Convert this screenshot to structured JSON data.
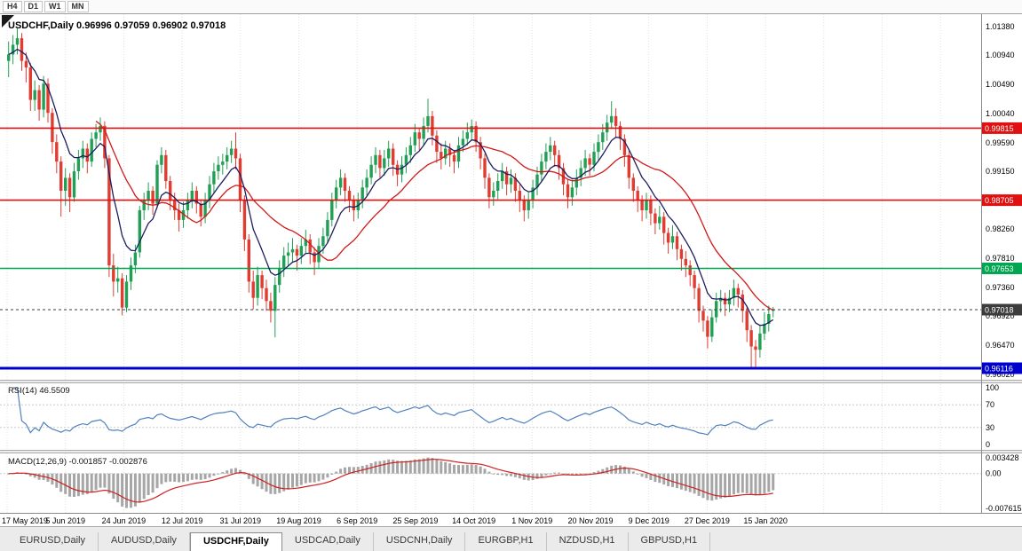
{
  "toolbar": {
    "timeframes": [
      "H4",
      "D1",
      "W1",
      "MN"
    ]
  },
  "chart": {
    "title_line": "USDCHF,Daily 0.96996 0.97059 0.96902 0.97018",
    "rsi_title": "RSI(14) 46.5509",
    "macd_title": "MACD(12,26,9) -0.001857 -0.002876"
  },
  "tabs": {
    "items": [
      "EURUSD,Daily",
      "AUDUSD,Daily",
      "USDCHF,Daily",
      "USDCAD,Daily",
      "USDCNH,Daily",
      "EURGBP,H1",
      "NZDUSD,H1",
      "GBPUSD,H1"
    ],
    "active": "USDCHF,Daily"
  },
  "colors": {
    "up": "#21a055",
    "down": "#e03c32",
    "ma_fast": "#1c1c60",
    "ma_slow": "#d11a1a",
    "rsi": "#4f81bd",
    "macd_hist": "#a6a6a6",
    "macd_signal": "#cf2020",
    "hline_red": "#e01010",
    "hline_green": "#00a651",
    "hline_blue": "#0000cd",
    "bid_box": "#3c3c3c"
  },
  "chart_data": {
    "type": "candlestick",
    "symbol": "USDCHF",
    "timeframe": "Daily",
    "ohlc_current": {
      "open": 0.96996,
      "high": 0.97059,
      "low": 0.96902,
      "close": 0.97018
    },
    "x_tick_labels": [
      "17 May 2019",
      "5 Jun 2019",
      "24 Jun 2019",
      "12 Jul 2019",
      "31 Jul 2019",
      "19 Aug 2019",
      "6 Sep 2019",
      "25 Sep 2019",
      "14 Oct 2019",
      "1 Nov 2019",
      "20 Nov 2019",
      "9 Dec 2019",
      "27 Dec 2019",
      "15 Jan 2020"
    ],
    "y_tick_labels": [
      "1.01380",
      "1.00940",
      "1.00490",
      "1.00040",
      "0.99590",
      "0.99150",
      "0.98260",
      "0.97810",
      "0.97360",
      "0.96920",
      "0.96470",
      "0.96020"
    ],
    "y_axis": {
      "max": 1.01571,
      "min": 0.95924
    },
    "price_scale_divisor": 10000,
    "horizontal_lines": [
      {
        "price": 0.99815,
        "label": "0.99815",
        "color": "#e01010",
        "line_width": 1.6,
        "dashed": false
      },
      {
        "price": 0.98705,
        "label": "0.98705",
        "color": "#e01010",
        "line_width": 1.6,
        "dashed": false
      },
      {
        "price": 0.97653,
        "label": "0.97653",
        "color": "#00a651",
        "line_width": 1.6,
        "dashed": false
      },
      {
        "price": 0.97018,
        "label": "0.97018",
        "color": "#3c3c3c",
        "line_width": 1,
        "dashed": true
      },
      {
        "price": 0.96116,
        "label": "0.96116",
        "color": "#0000cd",
        "line_width": 3,
        "dashed": false
      }
    ],
    "moving_averages": [
      {
        "method": "ema",
        "period": 8,
        "color": "#1c1c60"
      },
      {
        "method": "sma",
        "period": 21,
        "color": "#d11a1a"
      }
    ],
    "rsi": {
      "period": 14,
      "current": 46.5509,
      "scale_labels": [
        "100",
        "70",
        "30",
        "0"
      ],
      "levels": [
        70,
        30
      ],
      "color": "#4f81bd"
    },
    "macd": {
      "fast": 12,
      "slow": 26,
      "signal": 9,
      "current_macd": -0.001857,
      "current_signal": -0.002876,
      "scale_labels": [
        "0.003428",
        "0.00",
        "-0.007615"
      ],
      "scale_max": 0.003428,
      "scale_min": -0.007615
    },
    "candles": [
      [
        10085,
        10115,
        10060,
        10095
      ],
      [
        10095,
        10125,
        10080,
        10110
      ],
      [
        10110,
        10135,
        10095,
        10120
      ],
      [
        10120,
        10128,
        10070,
        10085
      ],
      [
        10085,
        10098,
        10052,
        10075
      ],
      [
        10075,
        10082,
        10008,
        10025
      ],
      [
        10025,
        10055,
        10008,
        10040
      ],
      [
        10040,
        10048,
        9993,
        10010
      ],
      [
        10010,
        10062,
        9998,
        10050
      ],
      [
        10050,
        10058,
        9990,
        10005
      ],
      [
        10005,
        10012,
        9942,
        9960
      ],
      [
        9960,
        9972,
        9912,
        9930
      ],
      [
        9930,
        9938,
        9845,
        9885
      ],
      [
        9885,
        9920,
        9862,
        9905
      ],
      [
        9905,
        9912,
        9852,
        9875
      ],
      [
        9875,
        9928,
        9868,
        9915
      ],
      [
        9915,
        9948,
        9902,
        9935
      ],
      [
        9935,
        9962,
        9920,
        9950
      ],
      [
        9950,
        9958,
        9912,
        9930
      ],
      [
        9930,
        9975,
        9922,
        9965
      ],
      [
        9965,
        9988,
        9952,
        9975
      ],
      [
        9975,
        9998,
        9962,
        9985
      ],
      [
        9985,
        9992,
        9920,
        9935
      ],
      [
        9935,
        9940,
        9752,
        9770
      ],
      [
        9770,
        9788,
        9722,
        9745
      ],
      [
        9745,
        9768,
        9728,
        9750
      ],
      [
        9750,
        9758,
        9693,
        9705
      ],
      [
        9705,
        9755,
        9698,
        9745
      ],
      [
        9745,
        9782,
        9732,
        9770
      ],
      [
        9770,
        9802,
        9758,
        9790
      ],
      [
        9790,
        9862,
        9782,
        9855
      ],
      [
        9855,
        9882,
        9840,
        9870
      ],
      [
        9870,
        9898,
        9855,
        9885
      ],
      [
        9885,
        9892,
        9848,
        9865
      ],
      [
        9865,
        9932,
        9858,
        9925
      ],
      [
        9925,
        9952,
        9912,
        9940
      ],
      [
        9940,
        9948,
        9888,
        9900
      ],
      [
        9900,
        9908,
        9855,
        9870
      ],
      [
        9870,
        9882,
        9840,
        9855
      ],
      [
        9855,
        9865,
        9822,
        9840
      ],
      [
        9840,
        9868,
        9828,
        9855
      ],
      [
        9855,
        9882,
        9842,
        9870
      ],
      [
        9870,
        9898,
        9858,
        9885
      ],
      [
        9885,
        9892,
        9850,
        9865
      ],
      [
        9865,
        9872,
        9830,
        9845
      ],
      [
        9845,
        9882,
        9835,
        9870
      ],
      [
        9870,
        9908,
        9858,
        9895
      ],
      [
        9895,
        9928,
        9882,
        9915
      ],
      [
        9915,
        9938,
        9902,
        9925
      ],
      [
        9925,
        9942,
        9910,
        9930
      ],
      [
        9930,
        9952,
        9918,
        9940
      ],
      [
        9940,
        9962,
        9928,
        9950
      ],
      [
        9950,
        9975,
        9918,
        9935
      ],
      [
        9935,
        9942,
        9852,
        9870
      ],
      [
        9870,
        9878,
        9792,
        9810
      ],
      [
        9810,
        9818,
        9728,
        9745
      ],
      [
        9745,
        9762,
        9702,
        9720
      ],
      [
        9720,
        9768,
        9708,
        9755
      ],
      [
        9755,
        9762,
        9718,
        9735
      ],
      [
        9735,
        9748,
        9700,
        9715
      ],
      [
        9715,
        9728,
        9682,
        9700
      ],
      [
        9700,
        9752,
        9659,
        9740
      ],
      [
        9740,
        9778,
        9728,
        9765
      ],
      [
        9765,
        9798,
        9752,
        9785
      ],
      [
        9785,
        9805,
        9768,
        9790
      ],
      [
        9790,
        9812,
        9775,
        9795
      ],
      [
        9795,
        9802,
        9762,
        9785
      ],
      [
        9785,
        9812,
        9772,
        9800
      ],
      [
        9800,
        9825,
        9788,
        9810
      ],
      [
        9810,
        9818,
        9772,
        9790
      ],
      [
        9790,
        9798,
        9755,
        9775
      ],
      [
        9775,
        9812,
        9765,
        9800
      ],
      [
        9800,
        9828,
        9788,
        9815
      ],
      [
        9815,
        9852,
        9805,
        9840
      ],
      [
        9840,
        9882,
        9830,
        9870
      ],
      [
        9870,
        9902,
        9858,
        9890
      ],
      [
        9890,
        9918,
        9878,
        9905
      ],
      [
        9905,
        9912,
        9868,
        9885
      ],
      [
        9885,
        9892,
        9852,
        9870
      ],
      [
        9870,
        9878,
        9838,
        9855
      ],
      [
        9855,
        9882,
        9842,
        9870
      ],
      [
        9870,
        9902,
        9858,
        9890
      ],
      [
        9890,
        9918,
        9878,
        9905
      ],
      [
        9905,
        9938,
        9895,
        9925
      ],
      [
        9925,
        9952,
        9912,
        9940
      ],
      [
        9940,
        9948,
        9905,
        9920
      ],
      [
        9920,
        9948,
        9908,
        9935
      ],
      [
        9935,
        9962,
        9922,
        9950
      ],
      [
        9950,
        9958,
        9908,
        9925
      ],
      [
        9925,
        9932,
        9892,
        9910
      ],
      [
        9910,
        9938,
        9898,
        9925
      ],
      [
        9925,
        9952,
        9912,
        9940
      ],
      [
        9940,
        9968,
        9928,
        9955
      ],
      [
        9955,
        9988,
        9945,
        9975
      ],
      [
        9975,
        9982,
        9948,
        9965
      ],
      [
        9965,
        9998,
        9955,
        9985
      ],
      [
        9985,
        10027,
        9975,
        10000
      ],
      [
        10000,
        10008,
        9955,
        9970
      ],
      [
        9970,
        9978,
        9928,
        9945
      ],
      [
        9945,
        9958,
        9918,
        9935
      ],
      [
        9935,
        9962,
        9925,
        9950
      ],
      [
        9950,
        9958,
        9922,
        9940
      ],
      [
        9940,
        9948,
        9912,
        9930
      ],
      [
        9930,
        9968,
        9920,
        9955
      ],
      [
        9955,
        9978,
        9945,
        9965
      ],
      [
        9965,
        9990,
        9955,
        9975
      ],
      [
        9975,
        9995,
        9962,
        9985
      ],
      [
        9985,
        9992,
        9945,
        9960
      ],
      [
        9960,
        9968,
        9918,
        9935
      ],
      [
        9935,
        9942,
        9888,
        9905
      ],
      [
        9905,
        9912,
        9858,
        9875
      ],
      [
        9875,
        9898,
        9862,
        9885
      ],
      [
        9885,
        9912,
        9872,
        9900
      ],
      [
        9900,
        9928,
        9888,
        9915
      ],
      [
        9915,
        9922,
        9878,
        9895
      ],
      [
        9895,
        9918,
        9882,
        9905
      ],
      [
        9905,
        9912,
        9868,
        9885
      ],
      [
        9885,
        9895,
        9852,
        9870
      ],
      [
        9870,
        9878,
        9838,
        9855
      ],
      [
        9855,
        9882,
        9842,
        9870
      ],
      [
        9870,
        9902,
        9858,
        9890
      ],
      [
        9890,
        9922,
        9878,
        9910
      ],
      [
        9910,
        9942,
        9898,
        9930
      ],
      [
        9930,
        9958,
        9918,
        9945
      ],
      [
        9945,
        9968,
        9932,
        9955
      ],
      [
        9955,
        9962,
        9922,
        9940
      ],
      [
        9940,
        9948,
        9902,
        9920
      ],
      [
        9920,
        9928,
        9878,
        9895
      ],
      [
        9895,
        9902,
        9858,
        9875
      ],
      [
        9875,
        9902,
        9862,
        9890
      ],
      [
        9890,
        9918,
        9878,
        9905
      ],
      [
        9905,
        9932,
        9892,
        9920
      ],
      [
        9920,
        9948,
        9908,
        9935
      ],
      [
        9935,
        9942,
        9908,
        9925
      ],
      [
        9925,
        9958,
        9915,
        9945
      ],
      [
        9945,
        9972,
        9932,
        9960
      ],
      [
        9960,
        9988,
        9948,
        9975
      ],
      [
        9975,
        10002,
        9962,
        9990
      ],
      [
        9990,
        10023,
        9980,
        10000
      ],
      [
        10000,
        10012,
        9968,
        9985
      ],
      [
        9985,
        9992,
        9948,
        9965
      ],
      [
        9965,
        9972,
        9922,
        9940
      ],
      [
        9940,
        9948,
        9888,
        9905
      ],
      [
        9905,
        9912,
        9868,
        9885
      ],
      [
        9885,
        9892,
        9852,
        9870
      ],
      [
        9870,
        9878,
        9838,
        9855
      ],
      [
        9855,
        9882,
        9842,
        9870
      ],
      [
        9870,
        9878,
        9832,
        9850
      ],
      [
        9850,
        9858,
        9818,
        9835
      ],
      [
        9835,
        9862,
        9825,
        9845
      ],
      [
        9845,
        9852,
        9802,
        9820
      ],
      [
        9820,
        9828,
        9788,
        9805
      ],
      [
        9805,
        9832,
        9795,
        9815
      ],
      [
        9815,
        9822,
        9778,
        9795
      ],
      [
        9795,
        9802,
        9762,
        9780
      ],
      [
        9780,
        9792,
        9752,
        9770
      ],
      [
        9770,
        9778,
        9738,
        9755
      ],
      [
        9755,
        9762,
        9718,
        9735
      ],
      [
        9735,
        9742,
        9682,
        9700
      ],
      [
        9700,
        9708,
        9668,
        9685
      ],
      [
        9685,
        9692,
        9642,
        9660
      ],
      [
        9660,
        9702,
        9652,
        9690
      ],
      [
        9690,
        9728,
        9682,
        9715
      ],
      [
        9715,
        9732,
        9698,
        9720
      ],
      [
        9720,
        9728,
        9692,
        9710
      ],
      [
        9710,
        9732,
        9698,
        9720
      ],
      [
        9720,
        9748,
        9708,
        9735
      ],
      [
        9735,
        9742,
        9705,
        9725
      ],
      [
        9725,
        9732,
        9682,
        9700
      ],
      [
        9700,
        9708,
        9652,
        9670
      ],
      [
        9670,
        9678,
        9613,
        9645
      ],
      [
        9645,
        9655,
        9612,
        9640
      ],
      [
        9640,
        9678,
        9628,
        9665
      ],
      [
        9665,
        9698,
        9655,
        9680
      ],
      [
        9680,
        9708,
        9668,
        9695
      ],
      [
        9700,
        9706,
        9690,
        9702
      ]
    ]
  }
}
